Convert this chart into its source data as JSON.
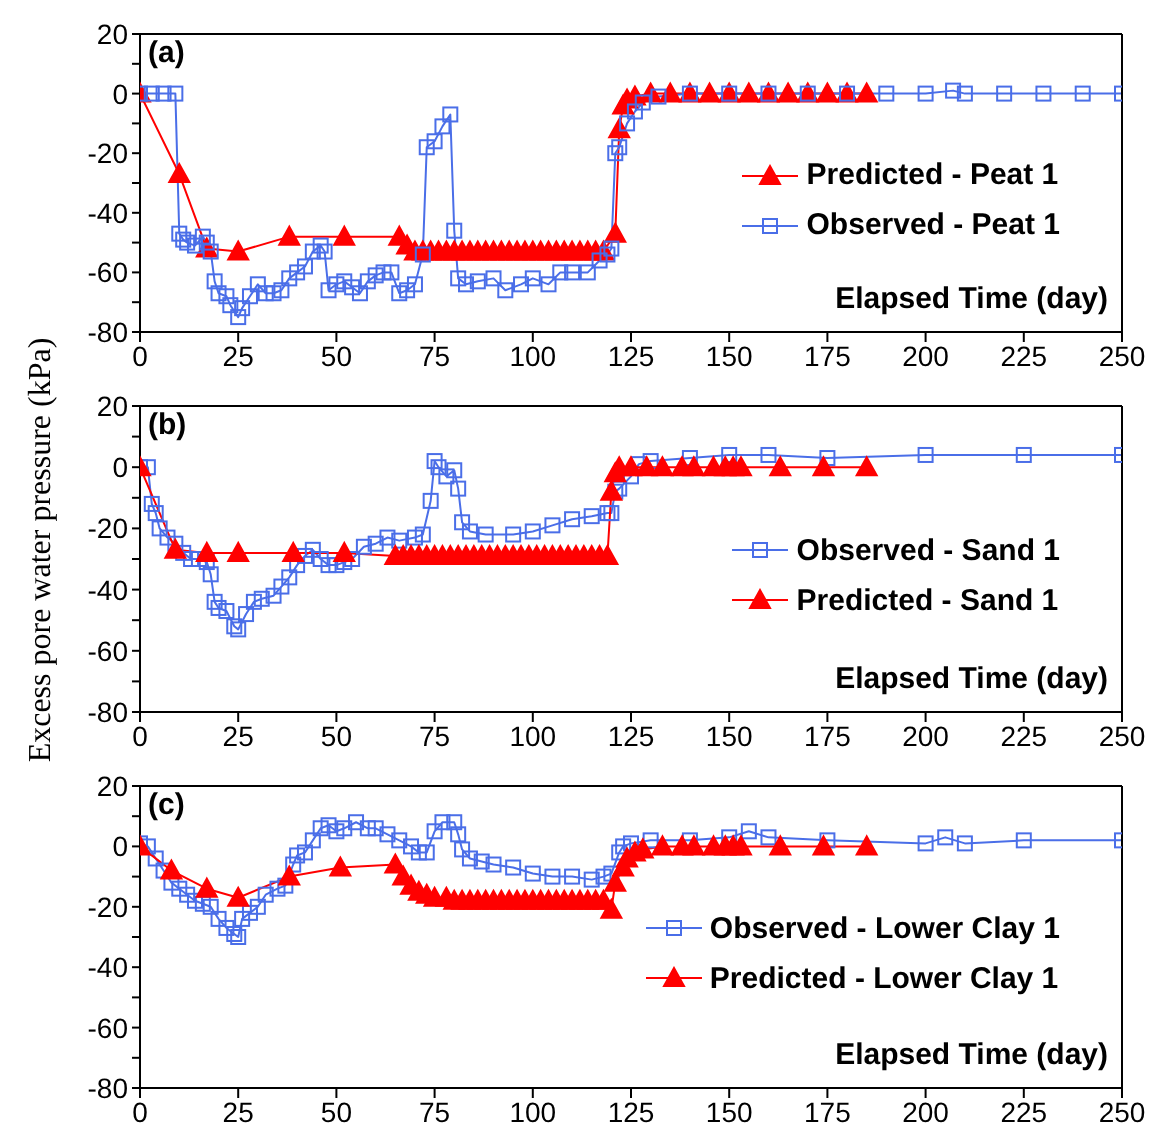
{
  "chart_data": [
    {
      "type": "line",
      "annotations": [
        "(a)"
      ],
      "xlabel": "Elapsed Time (day)",
      "xlim": [
        0,
        250
      ],
      "xticks": [
        0,
        25,
        50,
        75,
        100,
        125,
        150,
        175,
        200,
        225,
        250
      ],
      "ylim": [
        -80,
        20
      ],
      "yticks": [
        -80,
        {
          "value": -70,
          "label": null
        },
        -60,
        {
          "value": -50,
          "label": null
        },
        -40,
        {
          "value": -30,
          "label": null
        },
        -20,
        {
          "value": -10,
          "label": null
        },
        0,
        {
          "value": 10,
          "label": null
        },
        20
      ],
      "legend": "right",
      "series": [
        {
          "name": "Predicted - Peat 1",
          "color": "#ff0000",
          "marker": "triangle",
          "x": [
            0,
            10,
            17,
            25,
            38,
            52,
            66,
            68,
            70,
            72,
            74,
            76,
            78,
            80,
            82,
            84,
            86,
            88,
            90,
            92,
            94,
            96,
            98,
            100,
            102,
            104,
            106,
            108,
            110,
            112,
            114,
            116,
            118,
            121,
            122,
            123,
            124,
            126,
            130,
            135,
            140,
            145,
            150,
            155,
            160,
            165,
            170,
            175,
            180,
            185
          ],
          "values": [
            0,
            -27,
            -52,
            -53,
            -48,
            -48,
            -48,
            -51,
            -53,
            -53,
            -53,
            -53,
            -53,
            -53,
            -53,
            -53,
            -53,
            -53,
            -53,
            -53,
            -53,
            -53,
            -53,
            -53,
            -53,
            -53,
            -53,
            -53,
            -53,
            -53,
            -53,
            -53,
            -53,
            -47,
            -12,
            -4,
            -2,
            -1,
            0,
            0,
            0,
            0,
            0,
            0,
            0,
            0,
            0,
            0,
            0,
            0
          ]
        },
        {
          "name": "Observed - Peat 1",
          "color": "#4a6ee8",
          "marker": "square",
          "x": [
            0,
            3,
            6,
            9,
            10,
            11,
            12,
            14,
            16,
            17,
            18,
            19,
            20,
            22,
            23,
            25,
            26,
            28,
            30,
            32,
            34,
            36,
            38,
            40,
            42,
            44,
            46,
            47,
            48,
            50,
            52,
            54,
            56,
            58,
            60,
            62,
            64,
            66,
            68,
            70,
            72,
            73,
            75,
            77,
            79,
            80,
            81,
            83,
            86,
            90,
            93,
            97,
            100,
            104,
            107,
            110,
            114,
            117,
            119,
            120,
            121,
            122,
            124,
            126,
            128,
            132,
            140,
            150,
            160,
            170,
            180,
            190,
            200,
            207,
            210,
            220,
            230,
            240,
            250
          ],
          "values": [
            0,
            0,
            0,
            0,
            -47,
            -49,
            -50,
            -51,
            -48,
            -50,
            -53,
            -63,
            -67,
            -68,
            -71,
            -75,
            -72,
            -68,
            -64,
            -67,
            -67,
            -66,
            -62,
            -60,
            -58,
            -53,
            -51,
            -53,
            -66,
            -64,
            -63,
            -65,
            -67,
            -63,
            -61,
            -60,
            -60,
            -67,
            -66,
            -64,
            -54,
            -18,
            -16,
            -11,
            -7,
            -46,
            -62,
            -64,
            -63,
            -62,
            -66,
            -64,
            -62,
            -64,
            -60,
            -60,
            -60,
            -56,
            -54,
            -52,
            -20,
            -18,
            -10,
            -6,
            -3,
            -1,
            0,
            0,
            0,
            0,
            0,
            0,
            0,
            1,
            0,
            0,
            0,
            0,
            0
          ]
        }
      ]
    },
    {
      "type": "line",
      "annotations": [
        "(b)"
      ],
      "xlabel": "Elapsed Time (day)",
      "ylabel": "Excess pore water pressure (kPa)",
      "xlim": [
        0,
        250
      ],
      "xticks": [
        0,
        25,
        50,
        75,
        100,
        125,
        150,
        175,
        200,
        225,
        250
      ],
      "ylim": [
        -80,
        20
      ],
      "yticks": [
        -80,
        {
          "value": -70,
          "label": null
        },
        -60,
        {
          "value": -50,
          "label": null
        },
        -40,
        {
          "value": -30,
          "label": null
        },
        -20,
        {
          "value": -10,
          "label": null
        },
        0,
        {
          "value": 10,
          "label": null
        },
        20
      ],
      "legend": "right",
      "series": [
        {
          "name": "Observed - Sand 1",
          "color": "#4a6ee8",
          "marker": "square",
          "x": [
            0,
            2,
            3,
            4,
            5,
            7,
            9,
            11,
            13,
            15,
            17,
            18,
            19,
            20,
            22,
            24,
            25,
            27,
            29,
            31,
            34,
            36,
            38,
            40,
            42,
            44,
            46,
            48,
            50,
            52,
            54,
            57,
            60,
            63,
            66,
            70,
            72,
            74,
            75,
            76,
            78,
            80,
            81,
            82,
            84,
            88,
            95,
            100,
            105,
            110,
            115,
            119,
            120,
            121,
            122,
            125,
            127,
            130,
            140,
            150,
            160,
            175,
            200,
            225,
            250
          ],
          "values": [
            0,
            0,
            -12,
            -15,
            -20,
            -23,
            -25,
            -28,
            -30,
            -30,
            -31,
            -35,
            -44,
            -46,
            -47,
            -52,
            -53,
            -48,
            -44,
            -43,
            -42,
            -39,
            -36,
            -32,
            -29,
            -27,
            -30,
            -32,
            -32,
            -31,
            -30,
            -26,
            -25,
            -23,
            -24,
            -23,
            -22,
            -11,
            2,
            0,
            -3,
            -1,
            -7,
            -18,
            -21,
            -22,
            -22,
            -21,
            -19,
            -17,
            -16,
            -15,
            -15,
            -8,
            -7,
            -3,
            1,
            2,
            3,
            4,
            4,
            3,
            4,
            4,
            4
          ]
        },
        {
          "name": "Predicted - Sand 1",
          "color": "#ff0000",
          "marker": "triangle",
          "x": [
            0,
            9,
            17,
            25,
            39,
            52,
            65,
            67,
            69,
            71,
            73,
            75,
            77,
            79,
            81,
            83,
            85,
            87,
            89,
            91,
            93,
            95,
            97,
            99,
            101,
            103,
            105,
            107,
            109,
            111,
            113,
            115,
            117,
            119,
            120,
            121,
            122,
            125,
            129,
            133,
            138,
            141,
            146,
            149,
            151,
            153,
            163,
            174,
            185
          ],
          "values": [
            0,
            -27,
            -28,
            -28,
            -28,
            -28,
            -29,
            -29,
            -29,
            -29,
            -29,
            -29,
            -29,
            -29,
            -29,
            -29,
            -29,
            -29,
            -29,
            -29,
            -29,
            -29,
            -29,
            -29,
            -29,
            -29,
            -29,
            -29,
            -29,
            -29,
            -29,
            -29,
            -29,
            -29,
            -8,
            -2,
            0,
            0,
            0,
            0,
            0,
            0,
            0,
            0,
            0,
            0,
            0,
            0,
            0
          ]
        }
      ]
    },
    {
      "type": "line",
      "annotations": [
        "(c)"
      ],
      "xlabel": "Elapsed Time (day)",
      "xlim": [
        0,
        250
      ],
      "xticks": [
        0,
        25,
        50,
        75,
        100,
        125,
        150,
        175,
        200,
        225,
        250
      ],
      "ylim": [
        -80,
        20
      ],
      "yticks": [
        -80,
        {
          "value": -70,
          "label": null
        },
        -60,
        {
          "value": -50,
          "label": null
        },
        -40,
        {
          "value": -30,
          "label": null
        },
        -20,
        {
          "value": -10,
          "label": null
        },
        0,
        {
          "value": 10,
          "label": null
        },
        20
      ],
      "legend": "right",
      "series": [
        {
          "name": "Observed - Lower Clay 1",
          "color": "#4a6ee8",
          "marker": "square",
          "x": [
            0,
            2,
            4,
            6,
            8,
            10,
            12,
            14,
            16,
            18,
            20,
            22,
            24,
            25,
            26,
            28,
            30,
            32,
            35,
            37,
            39,
            40,
            42,
            44,
            46,
            48,
            50,
            52,
            55,
            58,
            60,
            63,
            66,
            69,
            71,
            73,
            75,
            77,
            80,
            81,
            82,
            84,
            87,
            90,
            95,
            100,
            105,
            110,
            115,
            118,
            120,
            122,
            123,
            125,
            130,
            140,
            150,
            155,
            160,
            175,
            200,
            205,
            210,
            225,
            250
          ],
          "values": [
            1,
            0,
            -4,
            -8,
            -12,
            -14,
            -16,
            -18,
            -19,
            -20,
            -24,
            -27,
            -29,
            -30,
            -24,
            -22,
            -20,
            -16,
            -14,
            -13,
            -6,
            -3,
            -2,
            2,
            6,
            7,
            5,
            6,
            8,
            6,
            6,
            4,
            2,
            0,
            -2,
            -2,
            5,
            8,
            8,
            4,
            -1,
            -4,
            -5,
            -6,
            -7,
            -9,
            -10,
            -10,
            -11,
            -10,
            -9,
            -2,
            0,
            1,
            2,
            2,
            3,
            5,
            3,
            2,
            1,
            3,
            1,
            2,
            2
          ]
        },
        {
          "name": "Predicted - Lower Clay 1",
          "color": "#ff0000",
          "marker": "triangle",
          "x": [
            0,
            8,
            17,
            25,
            38,
            51,
            65,
            67,
            69,
            71,
            73,
            75,
            78,
            80,
            82,
            84,
            86,
            88,
            90,
            92,
            94,
            96,
            98,
            100,
            102,
            104,
            106,
            108,
            110,
            112,
            114,
            116,
            118,
            120,
            121,
            123,
            124,
            126,
            128,
            133,
            138,
            141,
            146,
            149,
            151,
            153,
            163,
            174,
            185
          ],
          "values": [
            0,
            -8,
            -14,
            -17,
            -10,
            -7,
            -6,
            -10,
            -13,
            -15,
            -16,
            -17,
            -17,
            -18,
            -18,
            -18,
            -18,
            -18,
            -18,
            -18,
            -18,
            -18,
            -18,
            -18,
            -18,
            -18,
            -18,
            -18,
            -18,
            -18,
            -18,
            -18,
            -18,
            -21,
            -12,
            -7,
            -4,
            -2,
            -1,
            0,
            0,
            0,
            0,
            0,
            0,
            0,
            0,
            0,
            0
          ]
        }
      ]
    }
  ]
}
